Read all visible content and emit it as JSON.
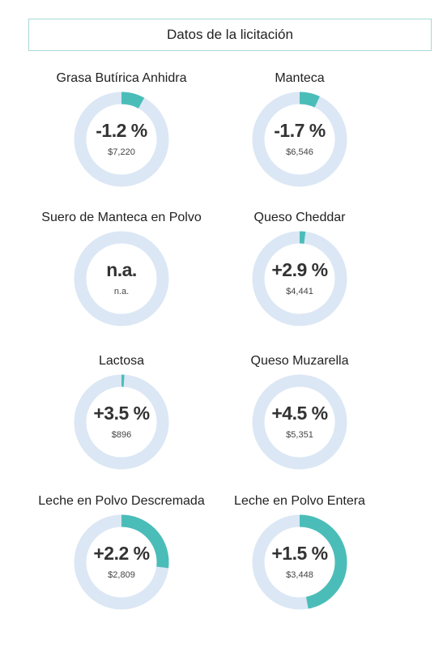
{
  "header": {
    "title": "Datos de la licitación"
  },
  "colors": {
    "ring_track": "#dbe7f4",
    "ring_fill": "#4bbdb9",
    "header_border": "#a8d8d4"
  },
  "chart_data": {
    "type": "donut-grid",
    "items": [
      {
        "name": "Grasa Butírica Anhidra",
        "change_label": "-1.2 %",
        "change": -1.2,
        "price_label": "$7,220",
        "price": 7220,
        "fill_fraction": 0.08
      },
      {
        "name": "Manteca",
        "change_label": "-1.7 %",
        "change": -1.7,
        "price_label": "$6,546",
        "price": 6546,
        "fill_fraction": 0.07
      },
      {
        "name": "Suero de Manteca en Polvo",
        "change_label": "n.a.",
        "change": null,
        "price_label": "n.a.",
        "price": null,
        "fill_fraction": 0
      },
      {
        "name": "Queso Cheddar",
        "change_label": "+2.9 %",
        "change": 2.9,
        "price_label": "$4,441",
        "price": 4441,
        "fill_fraction": 0.02
      },
      {
        "name": "Lactosa",
        "change_label": "+3.5 %",
        "change": 3.5,
        "price_label": "$896",
        "price": 896,
        "fill_fraction": 0.01
      },
      {
        "name": "Queso Muzarella",
        "change_label": "+4.5 %",
        "change": 4.5,
        "price_label": "$5,351",
        "price": 5351,
        "fill_fraction": 0
      },
      {
        "name": "Leche en Polvo Descremada",
        "change_label": "+2.2 %",
        "change": 2.2,
        "price_label": "$2,809",
        "price": 2809,
        "fill_fraction": 0.27
      },
      {
        "name": "Leche en Polvo Entera",
        "change_label": "+1.5 %",
        "change": 1.5,
        "price_label": "$3,448",
        "price": 3448,
        "fill_fraction": 0.47
      }
    ]
  }
}
